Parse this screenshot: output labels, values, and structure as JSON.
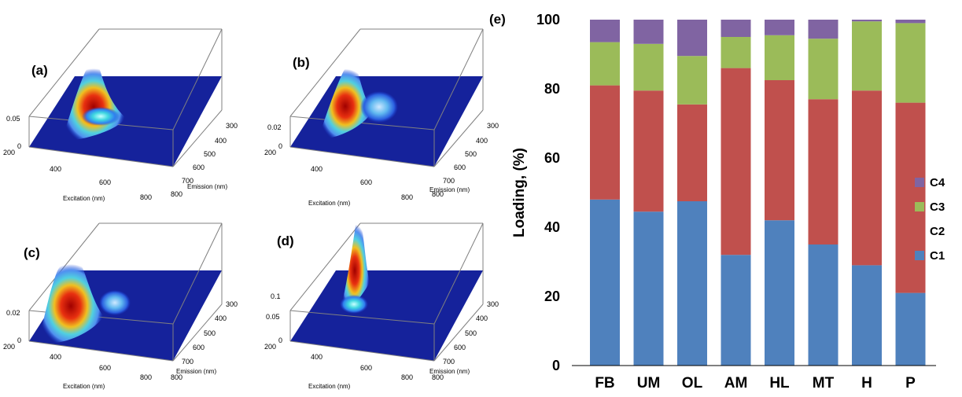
{
  "panels": [
    {
      "label": "(a)",
      "z_ticks": [
        "0",
        "0.05"
      ],
      "excitation_ticks": [
        "200",
        "400",
        "600",
        "800"
      ],
      "emission_ticks": [
        "300",
        "400",
        "500",
        "600",
        "700",
        "800"
      ],
      "excitation_label": "Excitation (nm)",
      "emission_label": "Emission (nm)"
    },
    {
      "label": "(b)",
      "z_ticks": [
        "0",
        "0.02"
      ],
      "excitation_ticks": [
        "200",
        "400",
        "600",
        "800"
      ],
      "emission_ticks": [
        "300",
        "400",
        "500",
        "600",
        "700",
        "800"
      ],
      "excitation_label": "Excitation (nm)",
      "emission_label": "Emission (nm)"
    },
    {
      "label": "(c)",
      "z_ticks": [
        "0",
        "0.02"
      ],
      "excitation_ticks": [
        "200",
        "400",
        "600",
        "800"
      ],
      "emission_ticks": [
        "300",
        "400",
        "500",
        "600",
        "700",
        "800"
      ],
      "excitation_label": "Excitation (nm)",
      "emission_label": "Emission (nm)"
    },
    {
      "label": "(d)",
      "z_ticks": [
        "0",
        "0.05",
        "0.1"
      ],
      "excitation_ticks": [
        "200",
        "400",
        "600",
        "800"
      ],
      "emission_ticks": [
        "300",
        "400",
        "500",
        "600",
        "700",
        "800"
      ],
      "excitation_label": "Excitation (nm)",
      "emission_label": "Emission (nm)"
    }
  ],
  "chart_data": {
    "type": "bar",
    "stacked": true,
    "panel_label": "(e)",
    "ylabel": "Loading, (%)",
    "xlabel": "",
    "ylim": [
      0,
      100
    ],
    "yticks": [
      "0",
      "20",
      "40",
      "60",
      "80",
      "100"
    ],
    "categories": [
      "FB",
      "UM",
      "OL",
      "AM",
      "HL",
      "MT",
      "H",
      "P"
    ],
    "series": [
      {
        "name": "C1",
        "color": "#4f81bd",
        "values": [
          48,
          44.5,
          47.5,
          32,
          42,
          35,
          29,
          21
        ]
      },
      {
        "name": "C2",
        "color": "#c0504d",
        "values": [
          33,
          35,
          28,
          54,
          40.5,
          42,
          50.5,
          55
        ]
      },
      {
        "name": "C3",
        "color": "#9bbb59",
        "values": [
          12.5,
          13.5,
          14,
          9,
          13,
          17.5,
          20,
          23
        ]
      },
      {
        "name": "C4",
        "color": "#8064a2",
        "values": [
          6.5,
          7,
          10.5,
          5,
          4.5,
          5.5,
          0.5,
          1
        ]
      }
    ],
    "legend_position": "right",
    "grid": false
  }
}
